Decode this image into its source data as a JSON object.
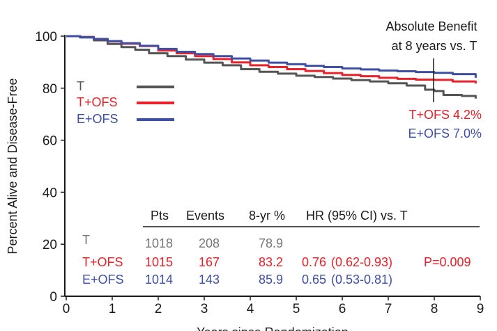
{
  "chart_data": {
    "type": "line",
    "xlabel": "Years since Randomization",
    "ylabel": "Percent Alive and Disease-Free",
    "xlim": [
      0,
      9
    ],
    "ylim": [
      0,
      100
    ],
    "x_ticks": [
      "0",
      "1",
      "2",
      "3",
      "4",
      "5",
      "6",
      "7",
      "8",
      "9"
    ],
    "y_ticks": [
      "0",
      "20",
      "40",
      "60",
      "80",
      "100"
    ],
    "legend_placement": "left",
    "series": [
      {
        "name": "T",
        "color": "#555555",
        "points": [
          [
            0,
            100
          ],
          [
            0.3,
            99.5
          ],
          [
            0.6,
            98.4
          ],
          [
            0.9,
            97
          ],
          [
            1.2,
            95.8
          ],
          [
            1.5,
            94.8
          ],
          [
            1.8,
            93.4
          ],
          [
            2.2,
            92.3
          ],
          [
            2.6,
            91
          ],
          [
            3,
            89.8
          ],
          [
            3.4,
            88.8
          ],
          [
            3.8,
            87.3
          ],
          [
            4.2,
            86.3
          ],
          [
            4.6,
            85.6
          ],
          [
            5,
            84.8
          ],
          [
            5.4,
            84.3
          ],
          [
            5.8,
            83.7
          ],
          [
            6.2,
            83.1
          ],
          [
            6.6,
            82.6
          ],
          [
            7,
            81.9
          ],
          [
            7.4,
            81
          ],
          [
            7.8,
            79.4
          ],
          [
            8,
            78.9
          ],
          [
            8.2,
            77.4
          ],
          [
            8.6,
            77
          ],
          [
            8.9,
            76
          ]
        ]
      },
      {
        "name": "T+OFS",
        "color": "#e8212a",
        "points": [
          [
            0,
            100
          ],
          [
            0.3,
            99.7
          ],
          [
            0.6,
            98.9
          ],
          [
            0.9,
            98
          ],
          [
            1.2,
            97.1
          ],
          [
            1.6,
            96.2
          ],
          [
            2,
            94.5
          ],
          [
            2.4,
            93.4
          ],
          [
            2.8,
            92.3
          ],
          [
            3.2,
            91.2
          ],
          [
            3.6,
            89.9
          ],
          [
            4,
            88.8
          ],
          [
            4.4,
            88.1
          ],
          [
            4.8,
            87.3
          ],
          [
            5.2,
            86.6
          ],
          [
            5.6,
            85.8
          ],
          [
            6,
            85.1
          ],
          [
            6.4,
            84.6
          ],
          [
            6.8,
            84
          ],
          [
            7.2,
            83.6
          ],
          [
            7.6,
            83.3
          ],
          [
            8,
            83.2
          ],
          [
            8.4,
            82.6
          ],
          [
            8.9,
            81.8
          ]
        ]
      },
      {
        "name": "E+OFS",
        "color": "#3f4fa3",
        "points": [
          [
            0,
            100
          ],
          [
            0.3,
            99.6
          ],
          [
            0.6,
            98.9
          ],
          [
            0.9,
            98.1
          ],
          [
            1.2,
            97.3
          ],
          [
            1.6,
            96.3
          ],
          [
            2,
            95.1
          ],
          [
            2.4,
            94
          ],
          [
            2.8,
            93.1
          ],
          [
            3.2,
            92.3
          ],
          [
            3.6,
            91.4
          ],
          [
            4,
            90.6
          ],
          [
            4.4,
            89.8
          ],
          [
            4.8,
            89.2
          ],
          [
            5.2,
            88.6
          ],
          [
            5.6,
            88.1
          ],
          [
            6,
            87.6
          ],
          [
            6.4,
            87.2
          ],
          [
            6.8,
            86.8
          ],
          [
            7.2,
            86.5
          ],
          [
            7.6,
            86.2
          ],
          [
            8,
            85.9
          ],
          [
            8.4,
            85.4
          ],
          [
            8.9,
            84
          ]
        ]
      }
    ],
    "annotation": {
      "title_line1": "Absolute Benefit",
      "title_line2": "at 8 years vs. T",
      "t_ofs": "T+OFS 4.2%",
      "e_ofs": "E+OFS 7.0%"
    },
    "table": {
      "headers": [
        "Pts",
        "Events",
        "8-yr %",
        "HR (95% CI) vs. T"
      ],
      "rows": [
        {
          "name": "T",
          "pts": "1018",
          "events": "208",
          "pct": "78.9",
          "hr": "",
          "ci": "",
          "p": ""
        },
        {
          "name": "T+OFS",
          "pts": "1015",
          "events": "167",
          "pct": "83.2",
          "hr": "0.76",
          "ci": "(0.62-0.93)",
          "p": "P=0.009"
        },
        {
          "name": "E+OFS",
          "pts": "1014",
          "events": "143",
          "pct": "85.9",
          "hr": "0.65",
          "ci": "(0.53-0.81)",
          "p": ""
        }
      ]
    }
  }
}
